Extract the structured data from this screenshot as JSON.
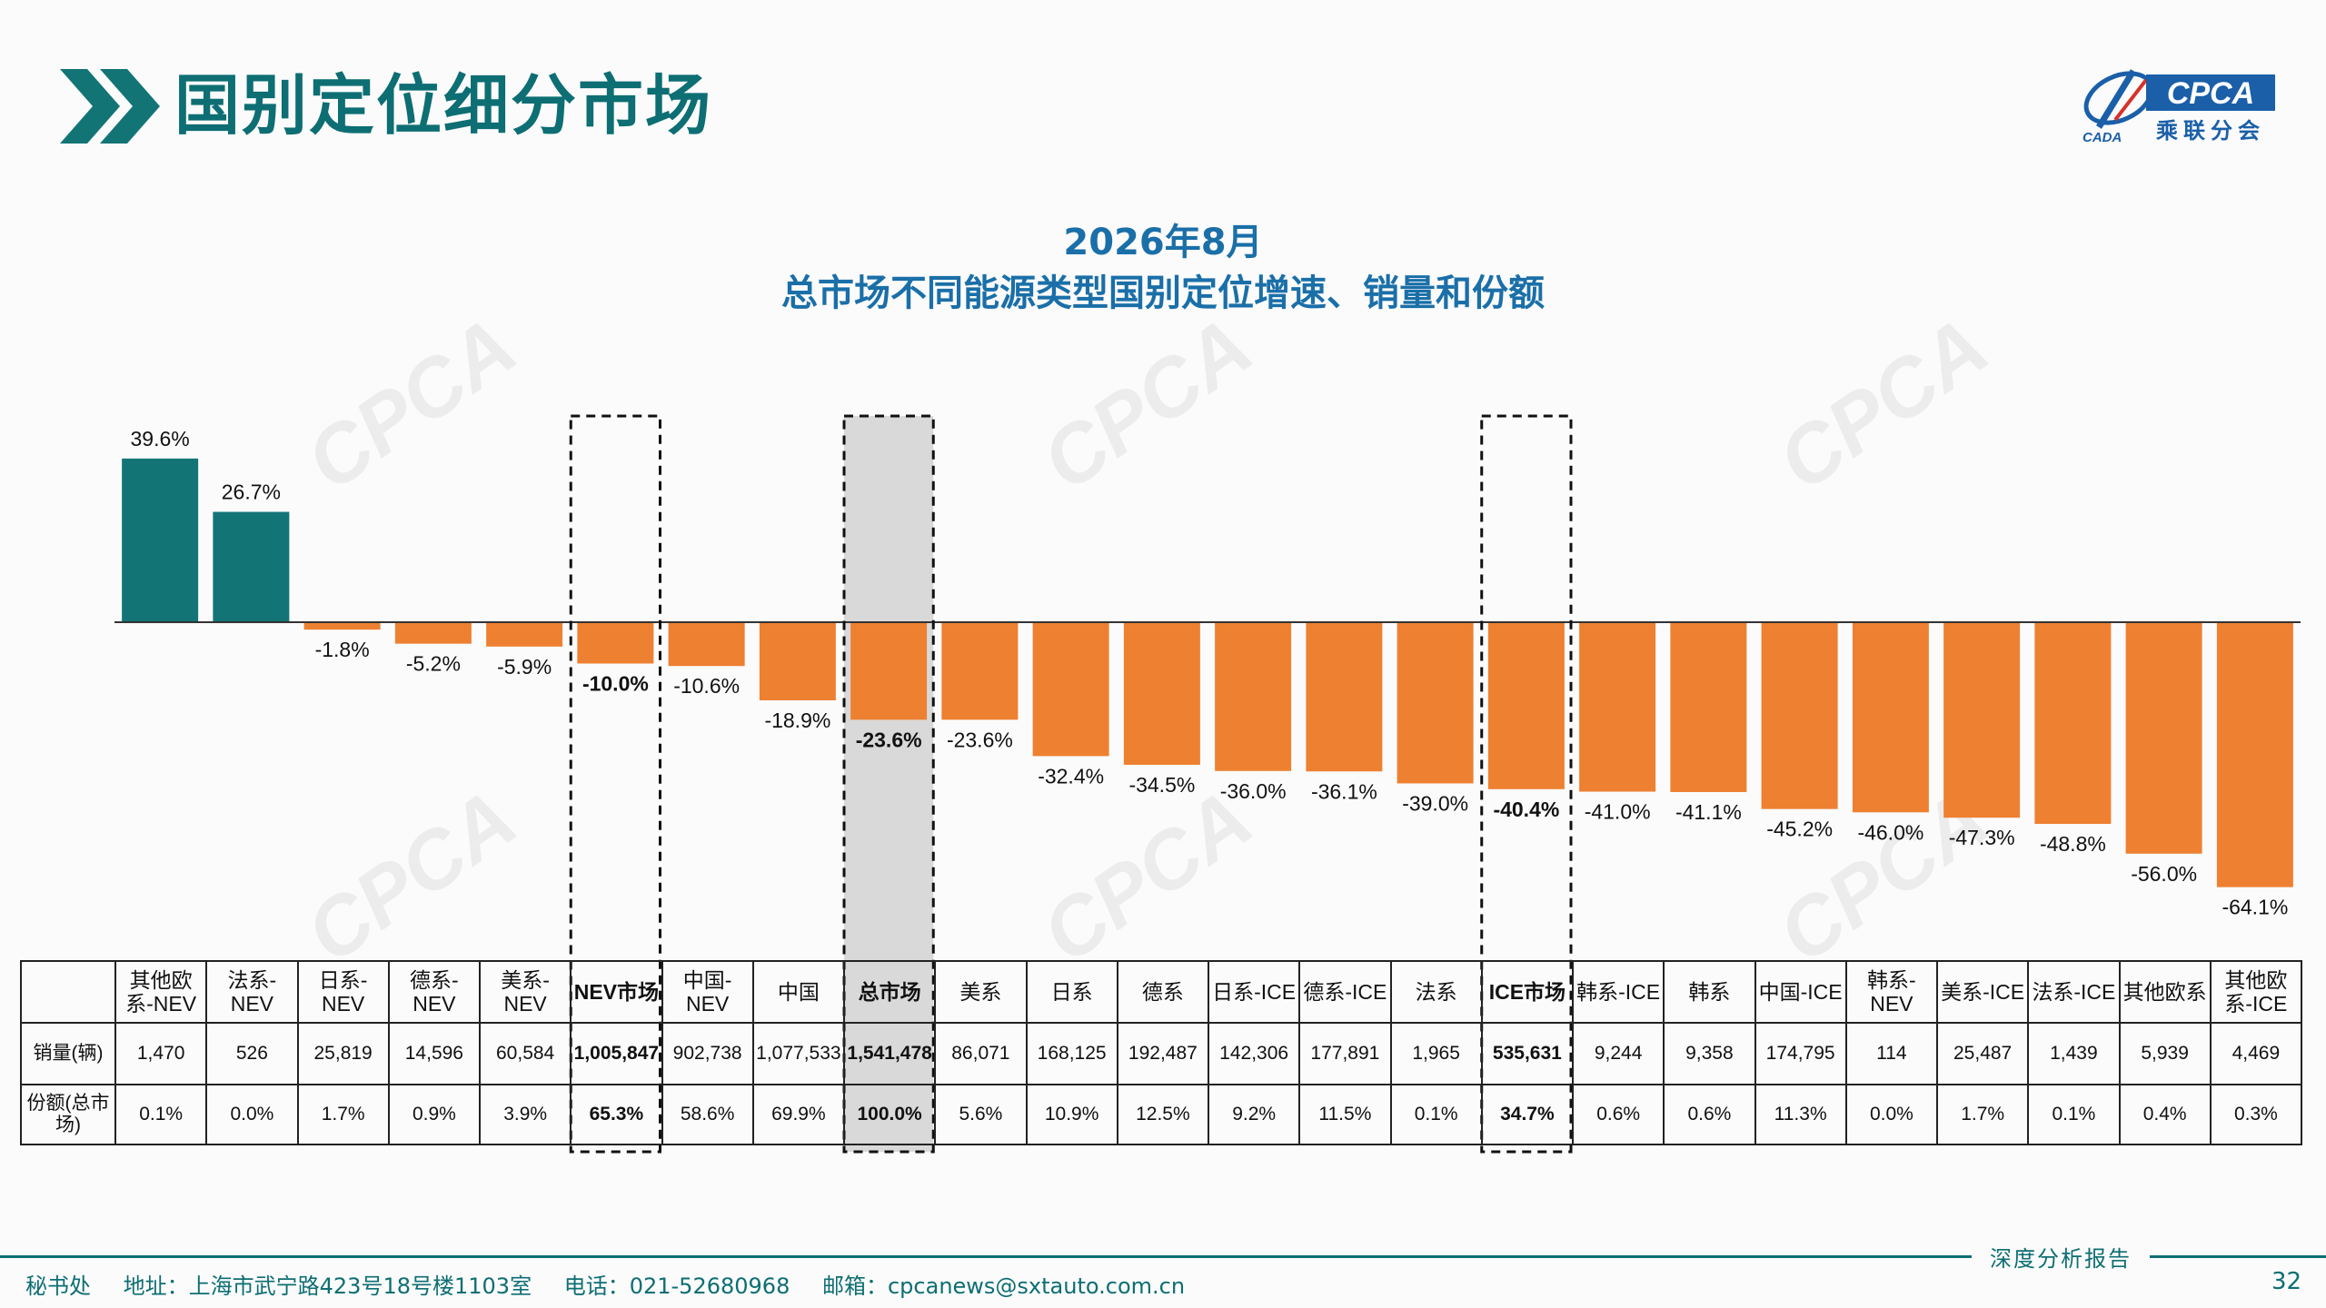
{
  "header": {
    "title": "国别定位细分市场",
    "logo": {
      "text": "CPCA",
      "subtext": "乘联分会",
      "tag": "CADA"
    }
  },
  "chart_title": {
    "line1": "2026年8月",
    "line2": "总市场不同能源类型国别定位增速、销量和份额"
  },
  "chart_data": {
    "type": "bar",
    "categories": [
      "其他欧系-NEV",
      "法系-NEV",
      "日系-NEV",
      "德系-NEV",
      "美系-NEV",
      "NEV市场",
      "中国-NEV",
      "中国",
      "总市场",
      "美系",
      "日系",
      "德系",
      "日系-ICE",
      "德系-ICE",
      "法系",
      "ICE市场",
      "韩系-ICE",
      "韩系",
      "中国-ICE",
      "韩系-NEV",
      "美系-ICE",
      "法系-ICE",
      "其他欧系",
      "其他欧系-ICE"
    ],
    "series": [
      {
        "values": [
          39.6,
          26.7,
          -1.8,
          -5.2,
          -5.9,
          -10.0,
          -10.6,
          -18.9,
          -23.6,
          -23.6,
          -32.4,
          -34.5,
          -36.0,
          -36.1,
          -39.0,
          -40.4,
          -41.0,
          -41.1,
          -45.2,
          -46.0,
          -47.3,
          -48.8,
          -56.0,
          -64.1
        ]
      }
    ],
    "value_labels": [
      "39.6%",
      "26.7%",
      "-1.8%",
      "-5.2%",
      "-5.9%",
      "-10.0%",
      "-10.6%",
      "-18.9%",
      "-23.6%",
      "-23.6%",
      "-32.4%",
      "-34.5%",
      "-36.0%",
      "-36.1%",
      "-39.0%",
      "-40.4%",
      "-41.0%",
      "-41.1%",
      "-45.2%",
      "-46.0%",
      "-47.3%",
      "-48.8%",
      "-56.0%",
      "-64.1%"
    ],
    "highlighted": [
      "NEV市场",
      "总市场",
      "ICE市场"
    ],
    "colors": {
      "positive": "#137476",
      "negative": "#ee8031",
      "highlight_fill": "#d9d9d9"
    }
  },
  "table": {
    "headers": [
      "其他欧系-NEV",
      "法系-NEV",
      "日系-NEV",
      "德系-NEV",
      "美系-NEV",
      "NEV市场",
      "中国-NEV",
      "中国",
      "总市场",
      "美系",
      "日系",
      "德系",
      "日系-ICE",
      "德系-ICE",
      "法系",
      "ICE市场",
      "韩系-ICE",
      "韩系",
      "中国-ICE",
      "韩系-NEV",
      "美系-ICE",
      "法系-ICE",
      "其他欧系",
      "其他欧系-ICE"
    ],
    "rows": [
      {
        "label": "销量(辆)",
        "values": [
          "1,470",
          "526",
          "25,819",
          "14,596",
          "60,584",
          "1,005,847",
          "902,738",
          "1,077,533",
          "1,541,478",
          "86,071",
          "168,125",
          "192,487",
          "142,306",
          "177,891",
          "1,965",
          "535,631",
          "9,244",
          "9,358",
          "174,795",
          "114",
          "25,487",
          "1,439",
          "5,939",
          "4,469"
        ]
      },
      {
        "label": "份额(总市场)",
        "values": [
          "0.1%",
          "0.0%",
          "1.7%",
          "0.9%",
          "3.9%",
          "65.3%",
          "58.6%",
          "69.9%",
          "100.0%",
          "5.6%",
          "10.9%",
          "12.5%",
          "9.2%",
          "11.5%",
          "0.1%",
          "34.7%",
          "0.6%",
          "0.6%",
          "11.3%",
          "0.0%",
          "1.7%",
          "0.1%",
          "0.4%",
          "0.3%"
        ]
      }
    ]
  },
  "footer": {
    "tag": "深度分析报告",
    "dept": "秘书处",
    "address": "地址：上海市武宁路423号18号楼1103室",
    "phone": "电话：021-52680968",
    "email": "邮箱：cpcanews@sxtauto.com.cn",
    "page_number": "32"
  }
}
